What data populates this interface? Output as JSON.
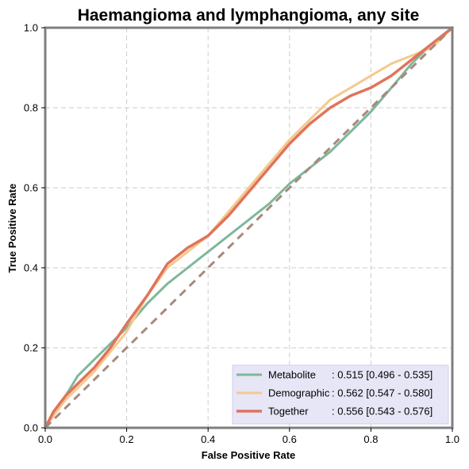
{
  "chart_data": {
    "type": "line",
    "title": "Haemangioma and lymphangioma, any site",
    "xlabel": "False Positive Rate",
    "ylabel": "True Positive Rate",
    "xlim": [
      0,
      1
    ],
    "ylim": [
      0,
      1
    ],
    "xticks": [
      "0.0",
      "0.2",
      "0.4",
      "0.6",
      "0.8",
      "1.0"
    ],
    "yticks": [
      "0.0",
      "0.2",
      "0.4",
      "0.6",
      "0.8",
      "1.0"
    ],
    "grid": true,
    "legend_position": "bottom-right",
    "reference_line": {
      "x": [
        0,
        1
      ],
      "y": [
        0,
        1
      ],
      "color": "#a8897d",
      "style": "dashed"
    },
    "series": [
      {
        "name": "Metabolite",
        "label_name": "Metabolite",
        "label_stat": ": 0.515 [0.496 - 0.535]",
        "color": "#7fb79b",
        "width": 3,
        "x": [
          0,
          0.02,
          0.05,
          0.08,
          0.12,
          0.16,
          0.2,
          0.25,
          0.3,
          0.35,
          0.4,
          0.45,
          0.5,
          0.55,
          0.6,
          0.65,
          0.7,
          0.75,
          0.8,
          0.85,
          0.9,
          0.95,
          1.0
        ],
        "y": [
          0,
          0.03,
          0.08,
          0.13,
          0.17,
          0.21,
          0.25,
          0.31,
          0.36,
          0.4,
          0.44,
          0.48,
          0.52,
          0.56,
          0.61,
          0.65,
          0.69,
          0.74,
          0.79,
          0.85,
          0.91,
          0.96,
          1.0
        ]
      },
      {
        "name": "Demographic",
        "label_name": "Demographic",
        "label_stat": ": 0.562 [0.547 - 0.580]",
        "color": "#f5c98e",
        "width": 3,
        "x": [
          0,
          0.02,
          0.05,
          0.08,
          0.12,
          0.16,
          0.2,
          0.25,
          0.3,
          0.35,
          0.4,
          0.45,
          0.5,
          0.55,
          0.6,
          0.65,
          0.7,
          0.75,
          0.8,
          0.85,
          0.9,
          0.95,
          1.0
        ],
        "y": [
          0,
          0.03,
          0.07,
          0.1,
          0.14,
          0.19,
          0.24,
          0.33,
          0.4,
          0.44,
          0.48,
          0.54,
          0.6,
          0.66,
          0.72,
          0.77,
          0.82,
          0.85,
          0.88,
          0.91,
          0.93,
          0.95,
          1.0
        ]
      },
      {
        "name": "Together",
        "label_name": "Together",
        "label_stat": ": 0.556 [0.543 - 0.576]",
        "color": "#e0735a",
        "width": 3.5,
        "x": [
          0,
          0.02,
          0.05,
          0.08,
          0.12,
          0.16,
          0.2,
          0.25,
          0.3,
          0.35,
          0.4,
          0.45,
          0.5,
          0.55,
          0.6,
          0.65,
          0.7,
          0.75,
          0.8,
          0.85,
          0.9,
          0.95,
          1.0
        ],
        "y": [
          0,
          0.04,
          0.08,
          0.11,
          0.15,
          0.2,
          0.26,
          0.33,
          0.41,
          0.45,
          0.48,
          0.53,
          0.59,
          0.65,
          0.71,
          0.76,
          0.8,
          0.83,
          0.85,
          0.88,
          0.92,
          0.96,
          1.0
        ]
      }
    ]
  }
}
